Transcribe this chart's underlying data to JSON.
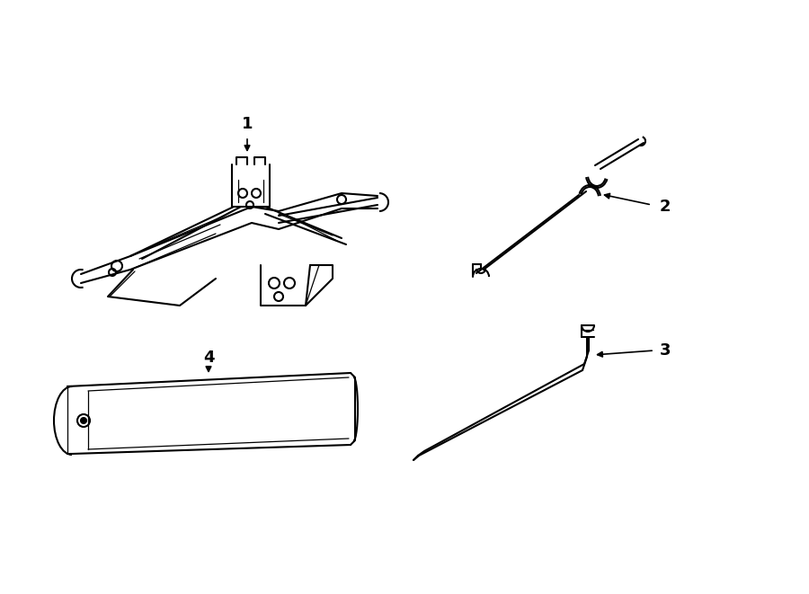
{
  "background_color": "#ffffff",
  "line_color": "#000000",
  "lw": 1.5,
  "lw_thin": 0.9,
  "label_fontsize": 13,
  "label_fontweight": "bold",
  "figsize": [
    9.0,
    6.61
  ],
  "dpi": 100
}
